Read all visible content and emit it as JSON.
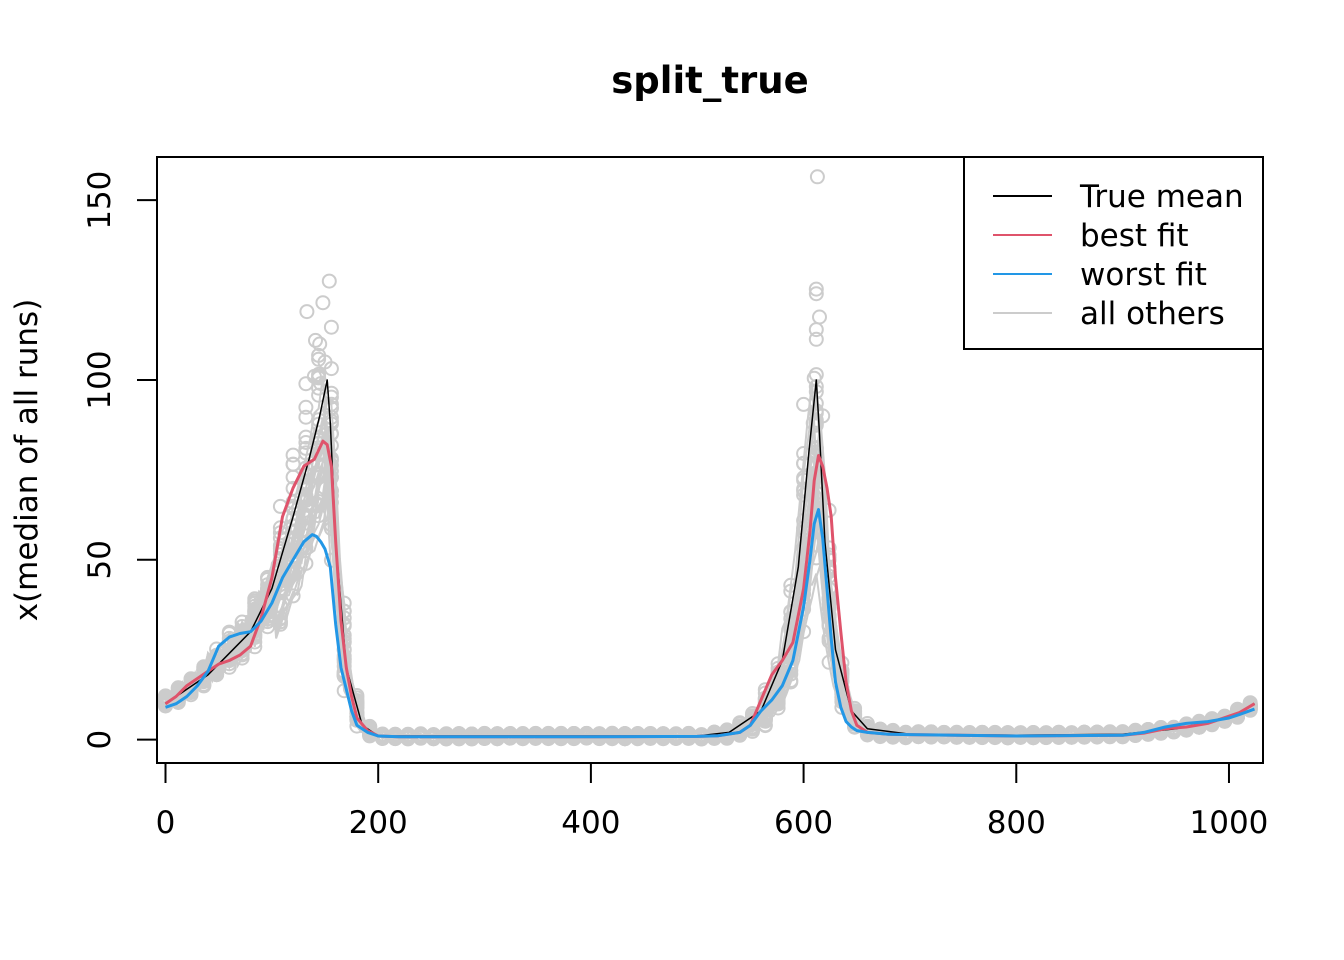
{
  "chart_data": {
    "type": "line",
    "title": "split_true",
    "xlabel": "",
    "ylabel": "x(median of all runs)",
    "xlim": [
      -8,
      1032
    ],
    "ylim": [
      -6.5,
      162
    ],
    "x_ticks": [
      0,
      200,
      400,
      600,
      800,
      1000
    ],
    "y_ticks": [
      0,
      50,
      100,
      150
    ],
    "grid": false,
    "legend": {
      "position": "top-right",
      "entries": [
        {
          "label": "True mean",
          "color": "#000000"
        },
        {
          "label": "best fit",
          "color": "#DF536B"
        },
        {
          "label": "worst fit",
          "color": "#2297E6"
        },
        {
          "label": "all others",
          "color": "#CCCCCC"
        }
      ]
    },
    "series": [
      {
        "name": "True mean",
        "color": "#000000",
        "x": [
          0,
          20,
          40,
          60,
          80,
          100,
          120,
          135,
          145,
          152,
          155,
          160,
          170,
          185,
          200,
          300,
          400,
          500,
          530,
          560,
          580,
          595,
          605,
          612,
          615,
          620,
          630,
          645,
          660,
          700,
          800,
          900,
          950,
          1000,
          1024
        ],
        "y": [
          10,
          14,
          18,
          24,
          30,
          42,
          62,
          78,
          90,
          100,
          88,
          55,
          20,
          4,
          1,
          1,
          1,
          1,
          2,
          8,
          22,
          48,
          80,
          100,
          85,
          55,
          25,
          8,
          3,
          1.5,
          1.2,
          1.5,
          3,
          6,
          10
        ]
      },
      {
        "name": "best fit",
        "color": "#DF536B",
        "x": [
          0,
          10,
          20,
          30,
          40,
          50,
          60,
          70,
          80,
          90,
          100,
          110,
          120,
          130,
          140,
          148,
          152,
          156,
          160,
          165,
          170,
          175,
          180,
          190,
          200,
          220,
          300,
          400,
          500,
          520,
          540,
          550,
          560,
          570,
          580,
          590,
          600,
          606,
          610,
          614,
          618,
          622,
          626,
          630,
          635,
          640,
          645,
          650,
          660,
          680,
          700,
          800,
          900,
          920,
          940,
          960,
          980,
          1000,
          1010,
          1024
        ],
        "y": [
          10,
          12,
          15,
          17,
          19,
          21,
          22,
          23.5,
          26,
          34,
          45,
          62,
          70,
          76,
          78,
          83,
          82,
          76,
          55,
          33,
          20,
          12,
          6,
          2.5,
          1,
          0.8,
          0.8,
          0.8,
          0.9,
          1.1,
          2,
          4,
          11,
          18,
          22,
          27,
          42,
          58,
          72,
          79,
          76,
          70,
          62,
          45,
          30,
          16,
          8,
          4,
          2,
          1.5,
          1.4,
          1,
          1.2,
          1.8,
          3,
          3.5,
          4.5,
          6.5,
          7.5,
          10
        ]
      },
      {
        "name": "worst fit",
        "color": "#2297E6",
        "x": [
          0,
          10,
          20,
          30,
          40,
          50,
          60,
          70,
          80,
          90,
          100,
          110,
          120,
          130,
          138,
          142,
          146,
          150,
          155,
          160,
          165,
          170,
          175,
          180,
          190,
          200,
          220,
          300,
          400,
          500,
          520,
          540,
          550,
          560,
          570,
          580,
          590,
          600,
          606,
          610,
          614,
          618,
          622,
          626,
          630,
          635,
          640,
          645,
          650,
          660,
          680,
          700,
          800,
          900,
          920,
          940,
          960,
          980,
          1000,
          1010,
          1024
        ],
        "y": [
          9,
          10,
          12,
          15,
          19,
          26,
          28.5,
          29.5,
          30,
          33,
          38,
          45,
          50,
          55,
          57,
          56.5,
          55,
          53,
          48,
          32,
          20,
          14,
          8,
          4,
          2,
          1,
          0.8,
          0.8,
          0.8,
          0.9,
          1.1,
          2,
          4,
          8,
          11,
          15,
          22,
          37,
          50,
          60,
          64,
          56,
          42,
          28,
          16,
          9,
          5,
          3.5,
          2.5,
          2,
          1.5,
          1.4,
          1,
          1.2,
          2,
          3.5,
          4.5,
          5,
          6,
          7,
          8.5
        ]
      }
    ],
    "others_style": {
      "name": "all others",
      "color": "#CCCCCC",
      "n_lines": 26
    }
  }
}
